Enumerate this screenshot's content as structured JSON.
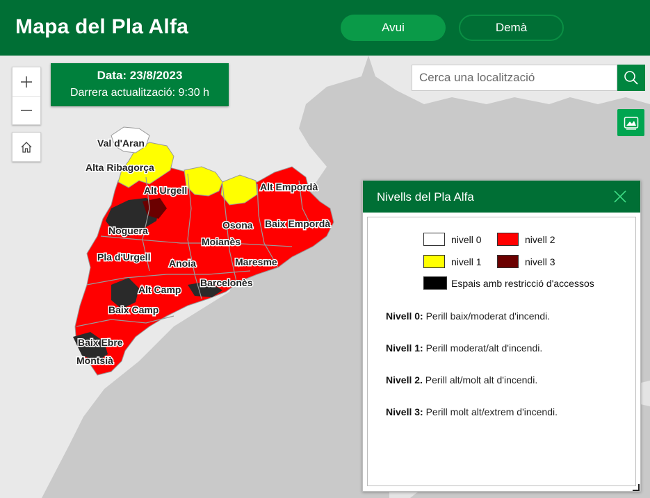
{
  "header": {
    "title": "Mapa del Pla Alfa",
    "today_label": "Avui",
    "tomorrow_label": "Demà"
  },
  "date_box": {
    "date": "Data: 23/8/2023",
    "updated": "Darrera actualització: 9:30 h"
  },
  "search": {
    "placeholder": "Cerca una localització"
  },
  "map": {
    "region_labels": [
      "Val d'Aran",
      "Alta Ribagorça",
      "Alt Urgell",
      "Alt Empordà",
      "Noguera",
      "Osona",
      "Baix Empordà",
      "Moianès",
      "Pla d'Urgell",
      "Anoia",
      "Maresme",
      "Alt Camp",
      "Barcelonès",
      "Baix Camp",
      "Baix Ebre",
      "Montsià"
    ]
  },
  "legend": {
    "title": "Nivells del Pla Alfa",
    "items": [
      {
        "label": "nivell 0",
        "color": "#ffffff"
      },
      {
        "label": "nivell 2",
        "color": "#ff0000"
      },
      {
        "label": "nivell 1",
        "color": "#ffff00"
      },
      {
        "label": "nivell 3",
        "color": "#6b0000"
      },
      {
        "label": "Espais amb restricció d'accessos",
        "color": "#000000"
      }
    ],
    "definitions": [
      {
        "term": "Nivell 0:",
        "text": " Perill baix/moderat d'incendi."
      },
      {
        "term": "Nivell 1:",
        "text": " Perill moderat/alt d'incendi."
      },
      {
        "term": "Nivell 2.",
        "text": " Perill alt/molt alt d'incendi."
      },
      {
        "term": "Nivell 3:",
        "text": " Perill molt alt/extrem d'incendi."
      }
    ]
  },
  "colors": {
    "header": "#006f35",
    "level0": "#ffffff",
    "level1": "#ffff00",
    "level2": "#ff0000",
    "level3": "#6b0000",
    "restricted": "#000000",
    "sea": "#c9c9c9",
    "land": "#e8e8e8"
  }
}
